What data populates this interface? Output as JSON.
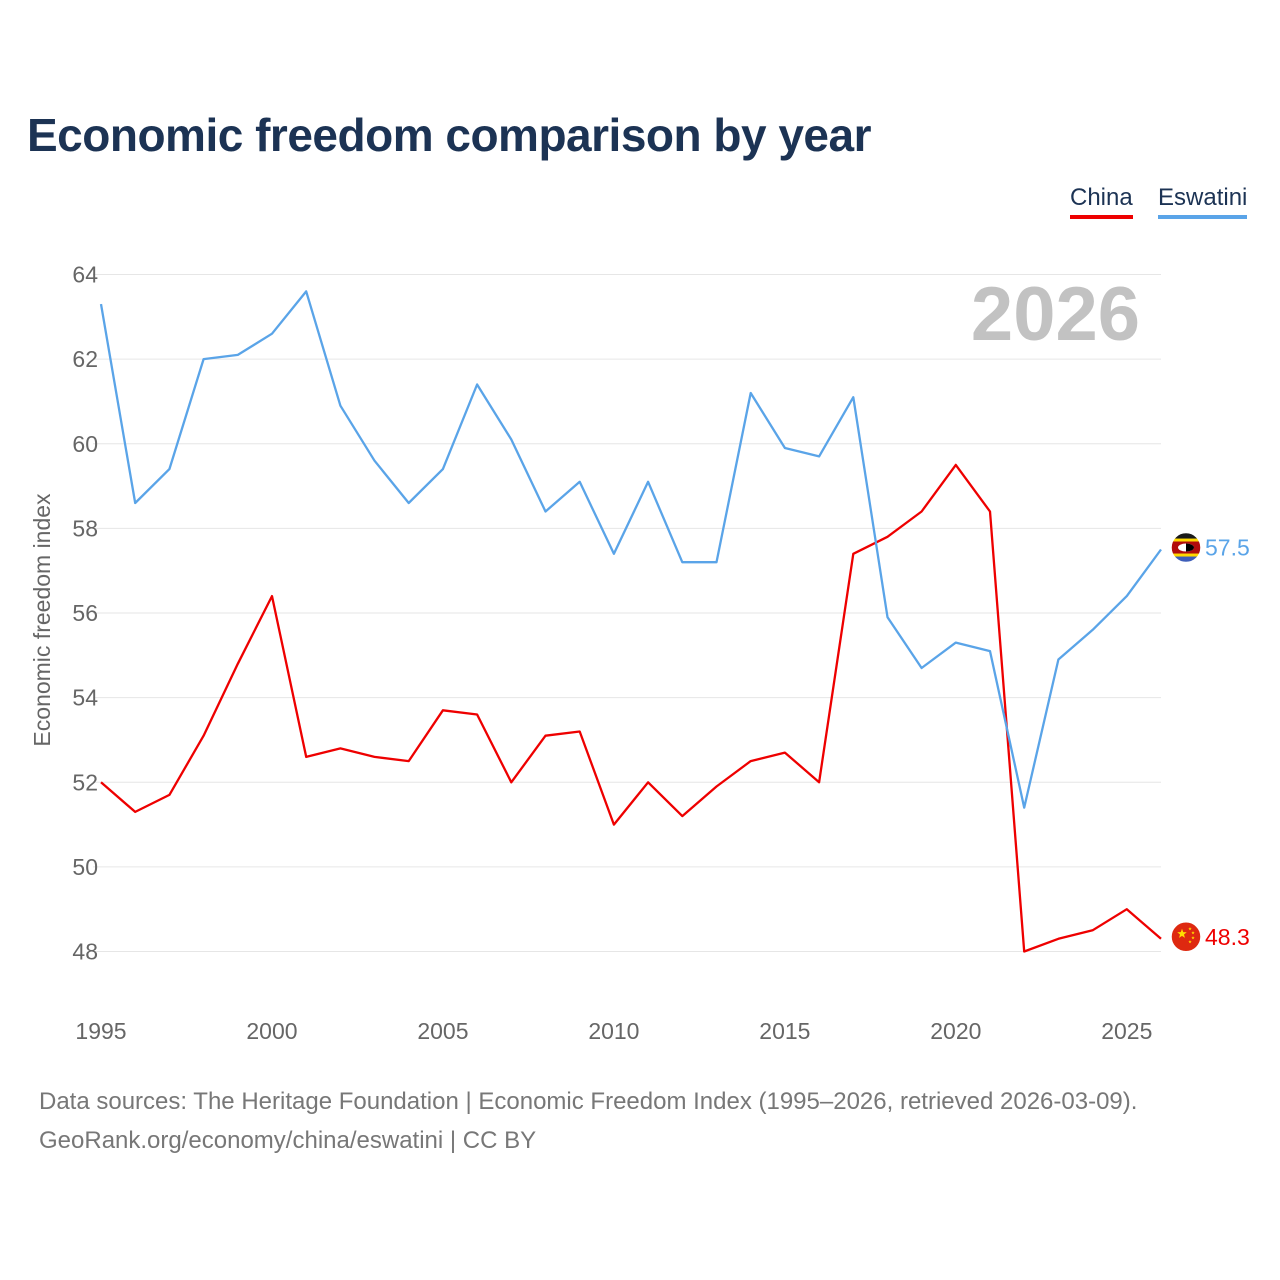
{
  "chart_data": {
    "type": "line",
    "title": "Economic freedom comparison by year",
    "ylabel": "Economic freedom index",
    "xlabel": "",
    "year_watermark": "2026",
    "xlim": [
      1995,
      2026
    ],
    "ylim": [
      47,
      65
    ],
    "x_ticks": [
      1995,
      2000,
      2005,
      2010,
      2015,
      2020,
      2025
    ],
    "y_ticks": [
      48,
      50,
      52,
      54,
      56,
      58,
      60,
      62,
      64
    ],
    "grid": true,
    "x": [
      1995,
      1996,
      1997,
      1998,
      1999,
      2000,
      2001,
      2002,
      2003,
      2004,
      2005,
      2006,
      2007,
      2008,
      2009,
      2010,
      2011,
      2012,
      2013,
      2014,
      2015,
      2016,
      2017,
      2018,
      2019,
      2020,
      2021,
      2022,
      2023,
      2024,
      2025,
      2026
    ],
    "series": [
      {
        "name": "China",
        "color": "#ee0000",
        "end_label": "48.3",
        "flag_icon": "china-flag-icon",
        "values": [
          52.0,
          51.3,
          51.7,
          53.1,
          54.8,
          56.4,
          52.6,
          52.8,
          52.6,
          52.5,
          53.7,
          53.6,
          52.0,
          53.1,
          53.2,
          51.0,
          52.0,
          51.2,
          51.9,
          52.5,
          52.7,
          52.0,
          57.4,
          57.8,
          58.4,
          59.5,
          58.4,
          48.0,
          48.3,
          48.5,
          49.0,
          48.3
        ]
      },
      {
        "name": "Eswatini",
        "color": "#5aa4e8",
        "end_label": "57.5",
        "flag_icon": "eswatini-flag-icon",
        "values": [
          63.3,
          58.6,
          59.4,
          62.0,
          62.1,
          62.6,
          63.6,
          60.9,
          59.6,
          58.6,
          59.4,
          61.4,
          60.1,
          58.4,
          59.1,
          57.4,
          59.1,
          57.2,
          57.2,
          61.2,
          59.9,
          59.7,
          61.1,
          55.9,
          54.7,
          55.3,
          55.1,
          51.4,
          54.9,
          55.6,
          56.4,
          57.5
        ]
      }
    ]
  },
  "footer": {
    "source": "Data sources: The Heritage Foundation | Economic Freedom Index (1995–2026, retrieved 2026-03-09).",
    "credit": "GeoRank.org/economy/china/eswatini | CC BY"
  }
}
